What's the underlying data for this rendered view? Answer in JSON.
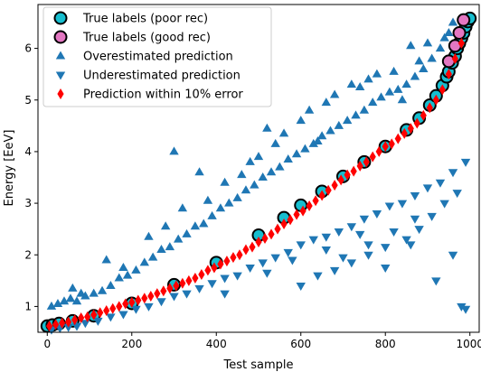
{
  "chart_data": {
    "type": "scatter",
    "xlabel": "Test sample",
    "ylabel": "Energy [EeV]",
    "xlim": [
      -22,
      1022
    ],
    "ylim": [
      0.5,
      6.85
    ],
    "xticks": [
      0,
      200,
      400,
      600,
      800,
      1000
    ],
    "yticks": [
      1,
      2,
      3,
      4,
      5,
      6
    ],
    "grid": false,
    "legend_position": "top-left",
    "colors": {
      "teal": "#17becf",
      "pink": "#e377c2",
      "blue": "#1f77b4",
      "red": "#ff0000",
      "outline": "#000000"
    },
    "series": [
      {
        "name": "True labels (poor rec)",
        "marker": "circle-outlined",
        "color": "#17becf",
        "x": [
          0,
          12,
          28,
          60,
          110,
          200,
          300,
          400,
          500,
          560,
          600,
          650,
          700,
          750,
          800,
          850,
          880,
          905,
          920,
          935,
          945,
          950,
          958,
          965,
          970,
          975,
          980,
          985,
          990,
          995,
          1000
        ],
        "values": [
          0.62,
          0.64,
          0.67,
          0.72,
          0.82,
          1.06,
          1.42,
          1.85,
          2.38,
          2.72,
          2.96,
          3.23,
          3.52,
          3.8,
          4.1,
          4.42,
          4.65,
          4.9,
          5.08,
          5.28,
          5.45,
          5.55,
          5.72,
          5.85,
          6.0,
          6.1,
          6.2,
          6.3,
          6.42,
          6.52,
          6.58
        ]
      },
      {
        "name": "True labels (good rec)",
        "marker": "circle-outlined",
        "color": "#e377c2",
        "x": [
          950,
          965,
          975,
          985
        ],
        "values": [
          5.75,
          6.05,
          6.3,
          6.55
        ]
      },
      {
        "name": "Overestimated prediction",
        "marker": "triangle-up",
        "color": "#1f77b4",
        "x": [
          10,
          25,
          40,
          55,
          70,
          90,
          110,
          130,
          150,
          170,
          190,
          210,
          230,
          250,
          270,
          290,
          310,
          330,
          350,
          370,
          390,
          410,
          430,
          450,
          470,
          490,
          510,
          530,
          550,
          570,
          590,
          610,
          630,
          650,
          670,
          690,
          710,
          730,
          750,
          770,
          790,
          810,
          830,
          850,
          870,
          890,
          910,
          930,
          950,
          60,
          140,
          240,
          320,
          420,
          500,
          560,
          620,
          680,
          760,
          820,
          880,
          940,
          80,
          180,
          280,
          380,
          460,
          540,
          600,
          660,
          720,
          780,
          840,
          900,
          960,
          300,
          520,
          740,
          860,
          640,
          480,
          360
        ],
        "values": [
          1.0,
          1.05,
          1.1,
          1.15,
          1.1,
          1.2,
          1.25,
          1.3,
          1.4,
          1.55,
          1.6,
          1.7,
          1.85,
          1.95,
          2.1,
          2.15,
          2.3,
          2.4,
          2.55,
          2.6,
          2.75,
          2.9,
          3.0,
          3.1,
          3.25,
          3.35,
          3.5,
          3.6,
          3.7,
          3.85,
          3.95,
          4.05,
          4.15,
          4.3,
          4.4,
          4.5,
          4.6,
          4.7,
          4.8,
          4.95,
          5.05,
          5.15,
          5.2,
          5.3,
          5.45,
          5.6,
          5.8,
          6.0,
          6.3,
          1.35,
          1.9,
          2.35,
          2.9,
          3.4,
          3.9,
          4.35,
          4.8,
          5.1,
          5.4,
          5.55,
          5.75,
          6.2,
          1.25,
          1.75,
          2.55,
          3.05,
          3.55,
          4.15,
          4.6,
          4.95,
          5.3,
          5.5,
          5.0,
          6.1,
          6.5,
          4.0,
          4.45,
          5.25,
          6.05,
          4.2,
          3.8,
          3.6
        ]
      },
      {
        "name": "Underestimated prediction",
        "marker": "triangle-down",
        "color": "#1f77b4",
        "x": [
          10,
          30,
          50,
          70,
          90,
          120,
          150,
          180,
          210,
          240,
          270,
          300,
          330,
          360,
          390,
          420,
          450,
          480,
          510,
          540,
          570,
          600,
          630,
          660,
          690,
          720,
          750,
          780,
          810,
          840,
          870,
          900,
          930,
          960,
          990,
          680,
          720,
          760,
          800,
          850,
          880,
          910,
          940,
          970,
          980,
          990,
          600,
          640,
          700,
          760,
          820,
          870,
          920,
          960,
          420,
          520,
          580,
          660,
          740,
          800,
          860
        ],
        "values": [
          0.55,
          0.58,
          0.6,
          0.62,
          0.68,
          0.72,
          0.8,
          0.85,
          0.95,
          1.0,
          1.1,
          1.2,
          1.25,
          1.35,
          1.45,
          1.55,
          1.6,
          1.75,
          1.85,
          1.95,
          2.05,
          2.2,
          2.3,
          2.35,
          2.45,
          2.55,
          2.7,
          2.8,
          2.95,
          3.0,
          3.15,
          3.3,
          3.4,
          3.6,
          3.8,
          1.7,
          1.85,
          2.0,
          2.15,
          2.3,
          2.5,
          2.75,
          3.0,
          3.2,
          1.0,
          0.95,
          1.4,
          1.6,
          1.95,
          2.2,
          2.45,
          2.7,
          1.5,
          2.0,
          1.25,
          1.65,
          1.9,
          2.1,
          2.4,
          1.75,
          2.2
        ]
      },
      {
        "name": "Prediction within 10% error",
        "marker": "diamond",
        "color": "#ff0000",
        "x": [
          5,
          20,
          35,
          50,
          65,
          80,
          95,
          110,
          125,
          140,
          155,
          170,
          185,
          200,
          215,
          230,
          245,
          260,
          275,
          290,
          305,
          320,
          335,
          350,
          365,
          380,
          395,
          410,
          425,
          440,
          455,
          470,
          485,
          500,
          515,
          530,
          545,
          560,
          575,
          590,
          605,
          620,
          635,
          650,
          665,
          680,
          695,
          710,
          725,
          740,
          755,
          770,
          785,
          800,
          815,
          830,
          845,
          860,
          875,
          890,
          905,
          920,
          935,
          950,
          965,
          980
        ],
        "values": [
          0.62,
          0.65,
          0.68,
          0.7,
          0.74,
          0.78,
          0.8,
          0.84,
          0.88,
          0.92,
          0.96,
          1.0,
          1.05,
          1.08,
          1.12,
          1.16,
          1.2,
          1.25,
          1.3,
          1.35,
          1.4,
          1.45,
          1.5,
          1.55,
          1.62,
          1.7,
          1.75,
          1.82,
          1.88,
          1.95,
          2.0,
          2.1,
          2.15,
          2.25,
          2.32,
          2.4,
          2.5,
          2.6,
          2.68,
          2.78,
          2.85,
          2.95,
          3.05,
          3.15,
          3.25,
          3.35,
          3.45,
          3.55,
          3.62,
          3.72,
          3.8,
          3.9,
          4.0,
          4.1,
          4.15,
          4.25,
          4.35,
          4.45,
          4.55,
          4.7,
          4.85,
          5.0,
          5.2,
          5.5,
          5.8,
          6.1
        ]
      }
    ]
  }
}
